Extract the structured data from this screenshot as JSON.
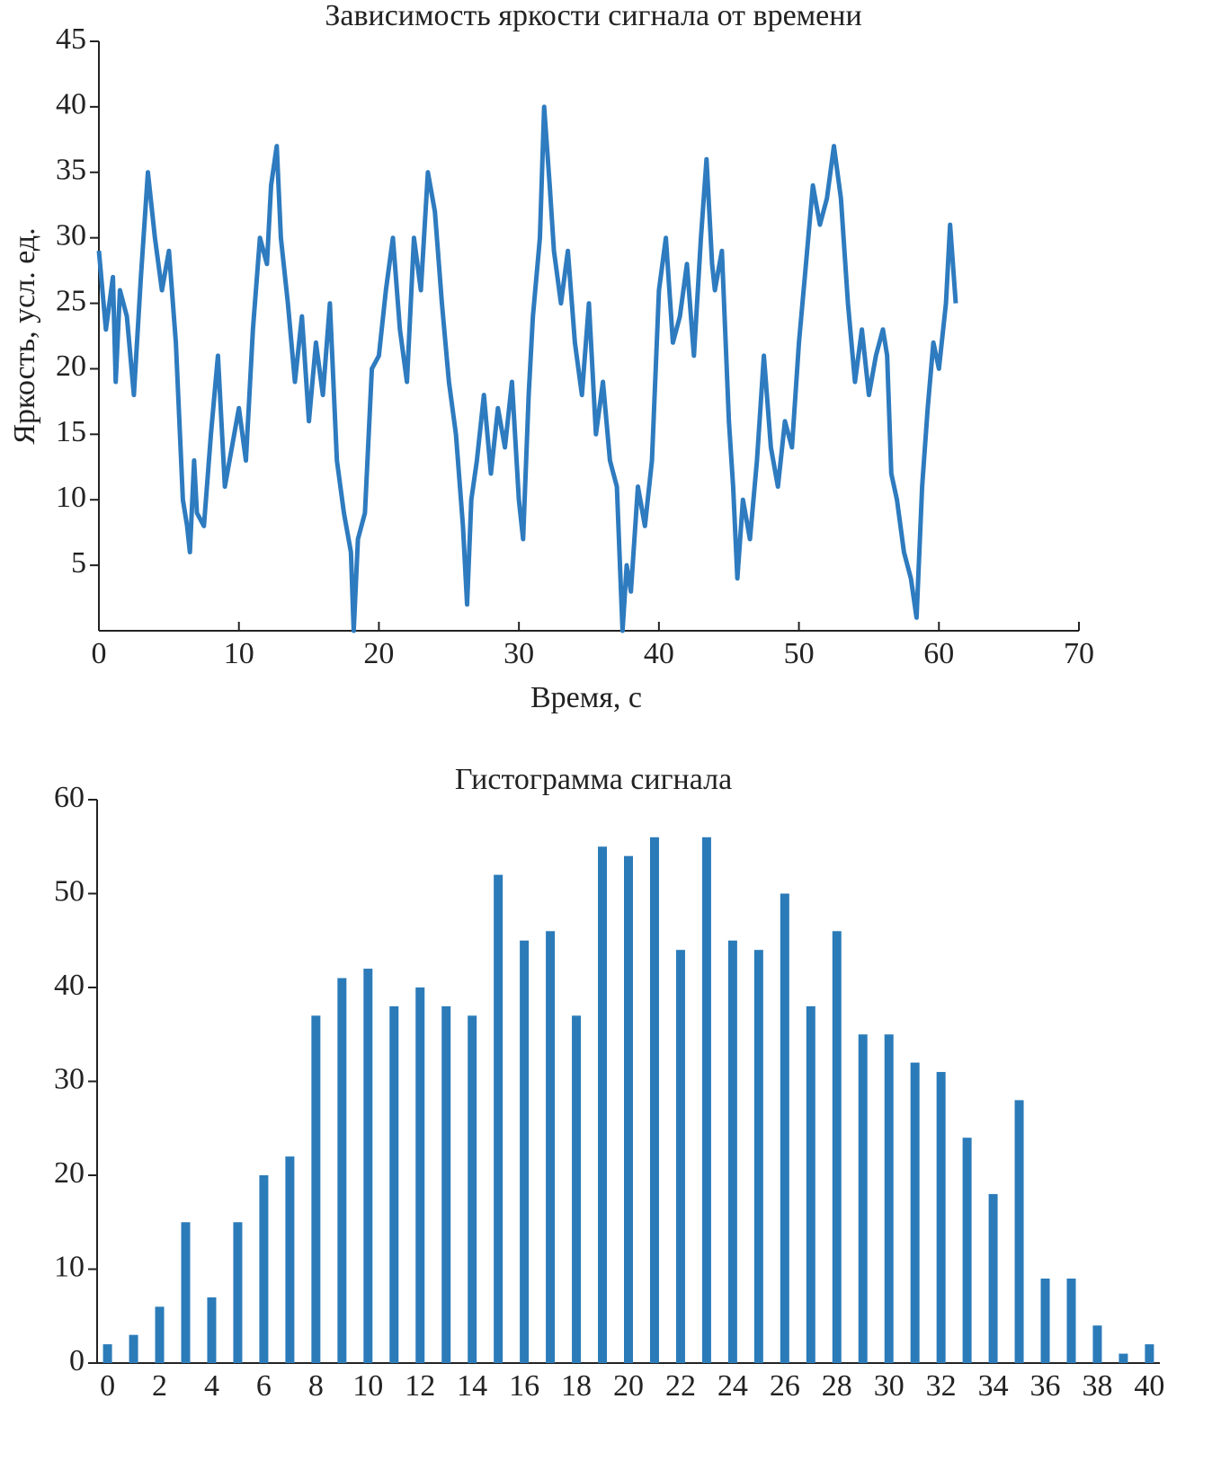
{
  "chart_data": [
    {
      "type": "line",
      "title": "Зависимость яркости сигнала от времени",
      "x_label": "Время, с",
      "y_label": "Яркость, усл. ед.",
      "color": "#2e7bbf",
      "x": [
        0,
        0.5,
        1,
        1.2,
        1.5,
        2,
        2.5,
        3,
        3.5,
        4,
        4.5,
        5,
        5.5,
        6,
        6.3,
        6.5,
        6.8,
        7,
        7.5,
        8,
        8.5,
        9,
        9.5,
        10,
        10.5,
        11,
        11.5,
        12,
        12.3,
        12.7,
        13,
        13.5,
        14,
        14.5,
        15,
        15.5,
        16,
        16.5,
        17,
        17.5,
        18,
        18.2,
        18.5,
        19,
        19.5,
        20,
        20.5,
        21,
        21.5,
        22,
        22.5,
        23,
        23.5,
        24,
        24.5,
        25,
        25.5,
        26,
        26.3,
        26.6,
        27,
        27.5,
        28,
        28.5,
        29,
        29.5,
        30,
        30.3,
        30.7,
        31,
        31.5,
        31.8,
        32.2,
        32.5,
        33,
        33.5,
        34,
        34.5,
        35,
        35.5,
        36,
        36.5,
        37,
        37.4,
        37.7,
        38,
        38.5,
        39,
        39.5,
        40,
        40.5,
        41,
        41.5,
        42,
        42.5,
        43,
        43.4,
        43.8,
        44,
        44.5,
        45,
        45.3,
        45.6,
        46,
        46.5,
        47,
        47.5,
        48,
        48.5,
        49,
        49.5,
        50,
        50.5,
        51,
        51.5,
        52,
        52.5,
        53,
        53.5,
        54,
        54.5,
        55,
        55.5,
        56,
        56.3,
        56.6,
        57,
        57.5,
        58,
        58.4,
        58.8,
        59.2,
        59.6,
        60,
        60.5,
        60.8,
        61.2
      ],
      "values": [
        29,
        23,
        27,
        19,
        26,
        24,
        18,
        27,
        35,
        30,
        26,
        29,
        22,
        10,
        8,
        6,
        13,
        9,
        8,
        15,
        21,
        11,
        14,
        17,
        13,
        23,
        30,
        28,
        34,
        37,
        30,
        25,
        19,
        24,
        16,
        22,
        18,
        25,
        13,
        9,
        6,
        0,
        7,
        9,
        20,
        21,
        26,
        30,
        23,
        19,
        30,
        26,
        35,
        32,
        25,
        19,
        15,
        8,
        2,
        10,
        13,
        18,
        12,
        17,
        14,
        19,
        10,
        7,
        18,
        24,
        30,
        40,
        34,
        29,
        25,
        29,
        22,
        18,
        25,
        15,
        19,
        13,
        11,
        0,
        5,
        3,
        11,
        8,
        13,
        26,
        30,
        22,
        24,
        28,
        21,
        30,
        36,
        28,
        26,
        29,
        16,
        11,
        4,
        10,
        7,
        13,
        21,
        14,
        11,
        16,
        14,
        22,
        28,
        34,
        31,
        33,
        37,
        33,
        25,
        19,
        23,
        18,
        21,
        23,
        21,
        12,
        10,
        6,
        4,
        1,
        11,
        17,
        22,
        20,
        25,
        31,
        25
      ],
      "xlim": [
        0,
        70
      ],
      "xticks": [
        0,
        10,
        20,
        30,
        40,
        50,
        60,
        70
      ],
      "ylim": [
        0,
        45
      ],
      "yticks": [
        5,
        10,
        15,
        20,
        25,
        30,
        35,
        40,
        45
      ]
    },
    {
      "type": "bar",
      "title": "Гистограмма сигнала",
      "color": "#2b7bb9",
      "x": [
        0,
        1,
        2,
        3,
        4,
        5,
        6,
        7,
        8,
        9,
        10,
        11,
        12,
        13,
        14,
        15,
        16,
        17,
        18,
        19,
        20,
        21,
        22,
        23,
        24,
        25,
        26,
        27,
        28,
        29,
        30,
        31,
        32,
        33,
        34,
        35,
        36,
        37,
        38,
        39,
        40
      ],
      "values": [
        2,
        3,
        6,
        15,
        7,
        15,
        20,
        22,
        37,
        41,
        42,
        38,
        40,
        38,
        37,
        52,
        45,
        46,
        37,
        55,
        54,
        56,
        44,
        56,
        45,
        44,
        50,
        38,
        46,
        35,
        35,
        32,
        31,
        24,
        18,
        28,
        9,
        9,
        4,
        1,
        2
      ],
      "xlim": [
        -0.4,
        40.4
      ],
      "xticks": [
        0,
        2,
        4,
        6,
        8,
        10,
        12,
        14,
        16,
        18,
        20,
        22,
        24,
        26,
        28,
        30,
        32,
        34,
        36,
        38,
        40
      ],
      "ylim": [
        0,
        60
      ],
      "yticks": [
        0,
        10,
        20,
        30,
        40,
        50,
        60
      ]
    }
  ]
}
